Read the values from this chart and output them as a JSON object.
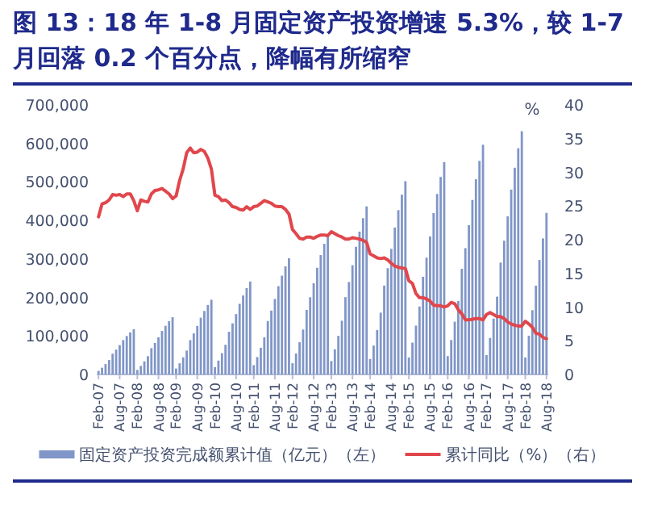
{
  "chart_data": {
    "type": "bar",
    "title": "图 13：18 年 1-8 月固定资产投资增速 5.3%，较 1-7 月回落 0.2 个百分点，降幅有所缩窄",
    "categories": [
      "Feb-07",
      null,
      null,
      null,
      null,
      null,
      "Aug-07",
      null,
      null,
      null,
      null,
      "Feb-08",
      null,
      null,
      null,
      null,
      null,
      "Aug-08",
      null,
      null,
      null,
      null,
      "Feb-09",
      null,
      null,
      null,
      null,
      null,
      "Aug-09",
      null,
      null,
      null,
      null,
      "Feb-10",
      null,
      null,
      null,
      null,
      null,
      "Aug-10",
      null,
      null,
      null,
      null,
      "Feb-11",
      null,
      null,
      null,
      null,
      null,
      "Aug-11",
      null,
      null,
      null,
      null,
      "Feb-12",
      null,
      null,
      null,
      null,
      null,
      "Aug-12",
      null,
      null,
      null,
      null,
      "Feb-13",
      null,
      null,
      null,
      null,
      null,
      "Aug-13",
      null,
      null,
      null,
      null,
      "Feb-14",
      null,
      null,
      null,
      null,
      null,
      "Aug-14",
      null,
      null,
      null,
      null,
      "Feb-15",
      null,
      null,
      null,
      null,
      null,
      "Aug-15",
      null,
      null,
      null,
      null,
      "Feb-16",
      null,
      null,
      null,
      null,
      null,
      "Aug-16",
      null,
      null,
      null,
      null,
      "Feb-17",
      null,
      null,
      null,
      null,
      null,
      "Aug-17",
      null,
      null,
      null,
      null,
      "Feb-18",
      null,
      null,
      null,
      null,
      null,
      "Aug-18"
    ],
    "series": [
      {
        "name": "固定资产投资完成额累计值（亿元）（左）",
        "color": "#8096c8",
        "values": [
          9400,
          17600,
          27000,
          37600,
          54000,
          64600,
          76400,
          89300,
          99900,
          109300,
          117500,
          11900,
          22300,
          34200,
          47600,
          68400,
          81800,
          96700,
          113000,
          126400,
          138300,
          148700,
          15500,
          29100,
          44600,
          62100,
          89300,
          106800,
          126200,
          147500,
          165000,
          180500,
          194100,
          19300,
          36200,
          55500,
          77200,
          111000,
          132800,
          156900,
          183500,
          205200,
          224500,
          241400,
          24200,
          45300,
          69400,
          96600,
          138900,
          166000,
          196200,
          229400,
          256600,
          280800,
          301900,
          29200,
          54700,
          83900,
          116700,
          167800,
          200600,
          237100,
          277200,
          310100,
          339300,
          364800,
          34900,
          65500,
          100400,
          139700,
          200800,
          240100,
          283700,
          331700,
          371000,
          405900,
          436500,
          40200,
          75300,
          115500,
          160600,
          230900,
          276100,
          326300,
          381500,
          426700,
          466900,
          502000,
          44100,
          82700,
          126900,
          176500,
          253700,
          303400,
          358500,
          419200,
          468900,
          513000,
          551600,
          47700,
          89500,
          137200,
          190900,
          274400,
          328100,
          387700,
          453300,
          507000,
          554700,
          596500,
          50500,
          94800,
          145300,
          202100,
          290600,
          347400,
          410600,
          480100,
          536900,
          587500,
          631700,
          44300,
          100800,
          167000,
          230600,
          297300,
          353400,
          419700
        ]
      },
      {
        "name": "累计同比（%）（右）",
        "type": "line",
        "axis": "y2",
        "color": "#e0474c",
        "values": [
          23.4,
          25.3,
          25.5,
          25.9,
          26.7,
          26.6,
          26.7,
          26.4,
          26.8,
          26.8,
          25.8,
          24.3,
          25.9,
          25.7,
          25.6,
          26.8,
          27.3,
          27.4,
          27.6,
          27.2,
          26.8,
          26.1,
          26.5,
          28.8,
          30.5,
          32.9,
          33.6,
          32.9,
          33.0,
          33.4,
          33.1,
          32.1,
          30.5,
          26.6,
          26.4,
          25.8,
          25.9,
          25.5,
          24.9,
          24.8,
          24.5,
          24.4,
          24.9,
          24.5,
          24.9,
          25.0,
          25.4,
          25.8,
          25.6,
          25.4,
          25.0,
          24.9,
          24.9,
          24.5,
          23.8,
          21.5,
          20.9,
          20.2,
          20.1,
          20.4,
          20.4,
          20.2,
          20.5,
          20.7,
          20.7,
          20.6,
          21.2,
          20.9,
          20.6,
          20.4,
          20.1,
          20.1,
          20.3,
          20.2,
          20.1,
          19.9,
          19.6,
          17.9,
          17.6,
          17.3,
          17.2,
          17.3,
          17.0,
          16.5,
          16.1,
          15.9,
          15.8,
          15.7,
          13.9,
          13.5,
          12.0,
          11.4,
          11.4,
          11.2,
          10.9,
          10.3,
          10.2,
          10.2,
          10.0,
          10.2,
          10.7,
          10.5,
          9.6,
          9.0,
          8.1,
          8.1,
          8.2,
          8.3,
          8.3,
          8.1,
          8.9,
          9.2,
          8.9,
          8.6,
          8.6,
          8.3,
          7.8,
          7.5,
          7.3,
          7.2,
          7.2,
          7.9,
          7.5,
          7.0,
          6.1,
          6.0,
          5.5,
          5.3
        ]
      }
    ],
    "ylim": [
      0,
      700000
    ],
    "yticks": [
      0,
      {
        "value": 100000,
        "label": "100,000"
      },
      {
        "value": 200000,
        "label": "200,000"
      },
      {
        "value": 300000,
        "label": "300,000"
      },
      {
        "value": 400000,
        "label": "400,000"
      },
      {
        "value": 500000,
        "label": "500,000"
      },
      {
        "value": 600000,
        "label": "600,000"
      },
      {
        "value": 700000,
        "label": "700,000"
      }
    ],
    "y2lim": [
      0,
      40
    ],
    "y2ticks": [
      0,
      5,
      10,
      15,
      20,
      25,
      30,
      35,
      40
    ],
    "y2label": "%",
    "legend": "bottom"
  }
}
